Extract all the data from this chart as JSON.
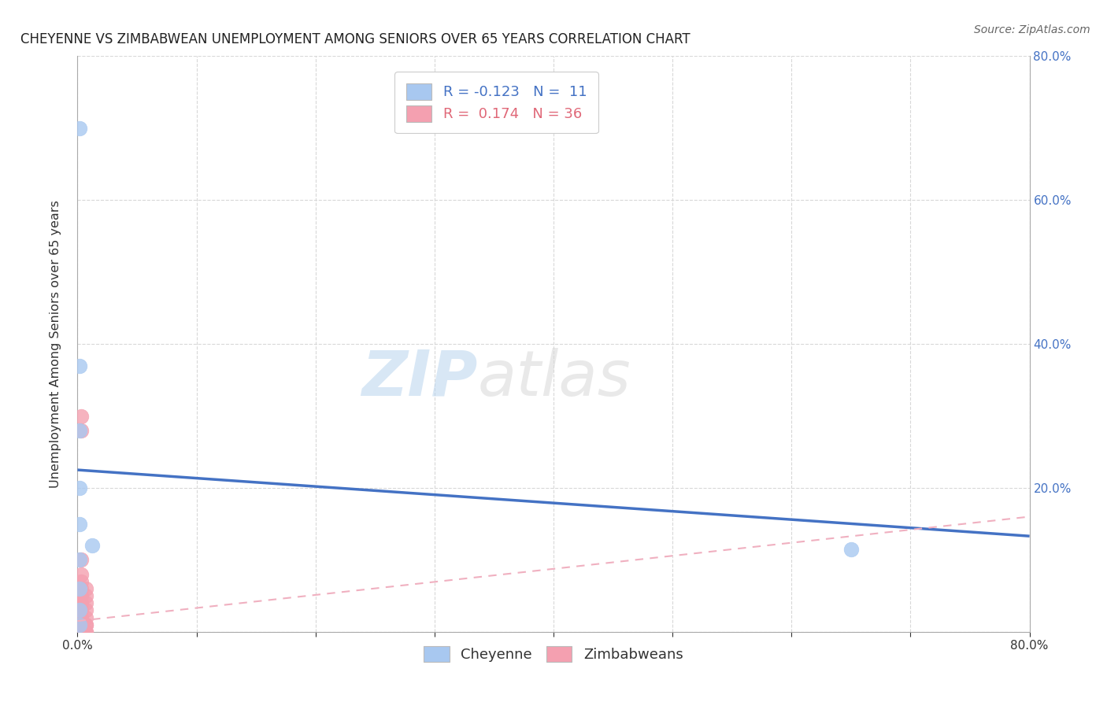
{
  "title": "CHEYENNE VS ZIMBABWEAN UNEMPLOYMENT AMONG SENIORS OVER 65 YEARS CORRELATION CHART",
  "source": "Source: ZipAtlas.com",
  "ylabel": "Unemployment Among Seniors over 65 years",
  "xlim": [
    0.0,
    0.8
  ],
  "ylim": [
    0.0,
    0.8
  ],
  "cheyenne_x": [
    0.002,
    0.002,
    0.002,
    0.002,
    0.002,
    0.002,
    0.002,
    0.002,
    0.002,
    0.012,
    0.65
  ],
  "cheyenne_y": [
    0.7,
    0.37,
    0.28,
    0.2,
    0.15,
    0.1,
    0.06,
    0.03,
    0.01,
    0.12,
    0.115
  ],
  "zimbabwean_x": [
    0.0,
    0.0,
    0.0,
    0.0,
    0.0,
    0.0,
    0.0,
    0.0,
    0.0,
    0.0,
    0.003,
    0.003,
    0.003,
    0.003,
    0.003,
    0.003,
    0.003,
    0.003,
    0.003,
    0.003,
    0.003,
    0.003,
    0.003,
    0.003,
    0.003,
    0.003,
    0.003,
    0.007,
    0.007,
    0.007,
    0.007,
    0.007,
    0.007,
    0.007,
    0.007,
    0.007
  ],
  "zimbabwean_y": [
    0.0,
    0.0,
    0.0,
    0.0,
    0.0,
    0.01,
    0.01,
    0.02,
    0.03,
    0.04,
    0.0,
    0.0,
    0.0,
    0.01,
    0.01,
    0.01,
    0.02,
    0.02,
    0.03,
    0.04,
    0.05,
    0.06,
    0.07,
    0.08,
    0.1,
    0.28,
    0.3,
    0.0,
    0.0,
    0.01,
    0.01,
    0.02,
    0.03,
    0.04,
    0.05,
    0.06
  ],
  "cheyenne_color": "#a8c8f0",
  "zimbabwean_color": "#f4a0b0",
  "cheyenne_line_color": "#4472c4",
  "zimbabwean_line_color": "#f0b0c0",
  "legend_r_cheyenne": "-0.123",
  "legend_n_cheyenne": "11",
  "legend_r_zimbabwean": "0.174",
  "legend_n_zimbabwean": "36",
  "cheyenne_label": "Cheyenne",
  "zimbabwean_label": "Zimbabweans",
  "watermark_zip": "ZIP",
  "watermark_atlas": "atlas",
  "background_color": "#ffffff",
  "grid_color": "#d8d8d8",
  "chey_line_x0": 0.0,
  "chey_line_x1": 0.8,
  "chey_line_y0": 0.225,
  "chey_line_y1": 0.133,
  "zimb_line_x0": 0.0,
  "zimb_line_x1": 0.8,
  "zimb_line_y0": 0.015,
  "zimb_line_y1": 0.16
}
